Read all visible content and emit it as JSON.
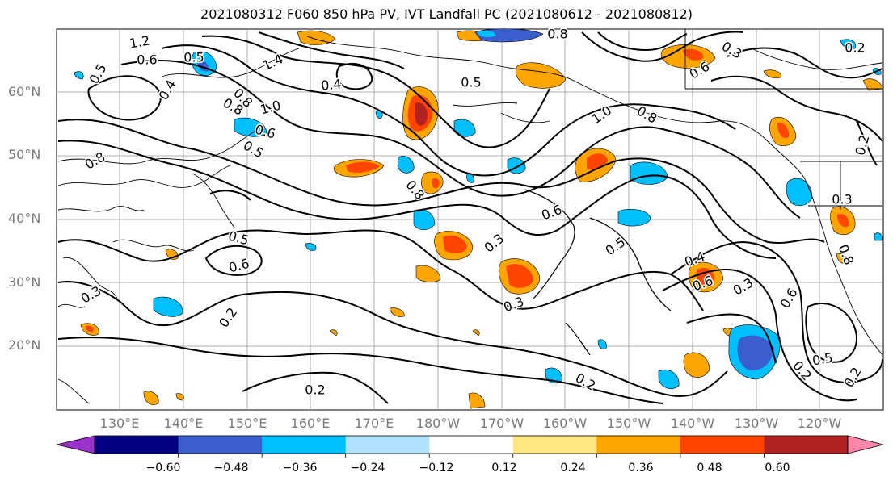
{
  "title": "2021080312 F060 850 hPa PV, IVT Landfall PC (2021080612 - 2021080812)",
  "lat_labels": [
    "60°N",
    "50°N",
    "40°N",
    "30°N",
    "20°N"
  ],
  "lon_labels": [
    "130°E",
    "140°E",
    "150°E",
    "160°E",
    "170°E",
    "180°W",
    "170°W",
    "160°W",
    "150°W",
    "140°W",
    "130°W",
    "120°W"
  ],
  "colorbar": {
    "colors": [
      "#9933cc",
      "#000080",
      "#3a5fcd",
      "#00bfff",
      "#b0e2ff",
      "#ffffff",
      "#ffe680",
      "#ffa500",
      "#ff4500",
      "#b22222",
      "#ff88aa"
    ],
    "tick_labels": [
      "−0.60",
      "−0.48",
      "−0.36",
      "−0.24",
      "−0.12",
      "0.12",
      "0.24",
      "0.36",
      "0.48",
      "0.60"
    ]
  },
  "contour_labels": [
    "1.2",
    "0.6",
    "0.5",
    "1.4",
    "0.5",
    "0.4",
    "0.5",
    "0.8",
    "0.2",
    "0.3",
    "0.8",
    "0.6",
    "1.0",
    "0.8",
    "0.4",
    "0.6",
    "1.0",
    "0.8",
    "0.5",
    "0.8",
    "0.8",
    "0.6",
    "0.5",
    "0.3",
    "0.6",
    "0.5",
    "0.3",
    "0.2",
    "0.4",
    "0.3",
    "0.6",
    "0.3",
    "0.6",
    "0.8",
    "0.2",
    "0.2",
    "0.2",
    "0.5",
    "0.3",
    "0.2",
    "0.2"
  ]
}
